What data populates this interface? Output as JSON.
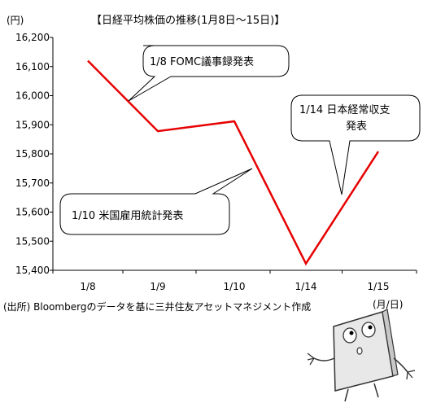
{
  "chart_data": {
    "type": "line",
    "title": "【日経平均株価の推移(1月8日～15日)】",
    "y_unit": "(円)",
    "x_unit": "(月/日)",
    "categories": [
      "1/8",
      "1/9",
      "1/10",
      "1/14",
      "1/15"
    ],
    "series": [
      {
        "values": [
          16120,
          15878,
          15912,
          15423,
          15808
        ],
        "color": "#e60000"
      }
    ],
    "ylim": [
      15400,
      16200
    ],
    "yticks": [
      "15,400",
      "15,500",
      "15,600",
      "15,700",
      "15,800",
      "15,900",
      "16,000",
      "16,100",
      "16,200"
    ],
    "grid": "none",
    "annotations": [
      {
        "lines": [
          "1/8  FOMC議事録発表"
        ]
      },
      {
        "lines": [
          "1/10    米国雇用統計発表"
        ]
      },
      {
        "lines": [
          "1/14  日本経常収支",
          "発表"
        ]
      }
    ],
    "source": "(出所) Bloombergのデータを基に三井住友アセットマネジメント作成"
  },
  "mascot": {
    "name": "paper-character",
    "color": "#e8e8e8"
  }
}
